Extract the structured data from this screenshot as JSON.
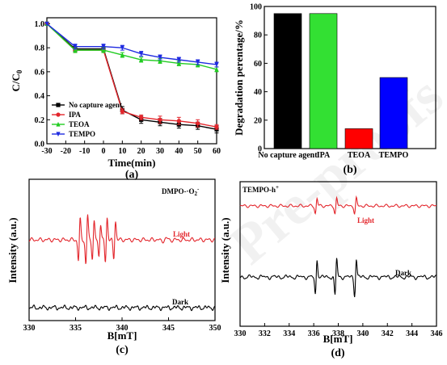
{
  "chart_data": [
    {
      "panel": "(a)",
      "type": "line",
      "xlabel": "Time(min)",
      "ylabel": "C/C",
      "ylabel_sub": "0",
      "xlim": [
        -30,
        60
      ],
      "ylim": [
        0.0,
        1.05
      ],
      "xticks": [
        "-30",
        "-20",
        "-10",
        "0",
        "10",
        "20",
        "30",
        "40",
        "50",
        "60"
      ],
      "yticks": [
        "0.0",
        "0.2",
        "0.4",
        "0.6",
        "0.8",
        "1.0"
      ],
      "legend": "bottom-left",
      "x": [
        -30,
        -15,
        0,
        10,
        20,
        30,
        40,
        50,
        60
      ],
      "series": [
        {
          "name": "No capture agent",
          "color": "#000000",
          "marker": "square",
          "values": [
            1.0,
            0.79,
            0.79,
            0.28,
            0.2,
            0.18,
            0.16,
            0.15,
            0.12
          ],
          "err": [
            0,
            0.02,
            0.02,
            0.03,
            0.03,
            0.03,
            0.03,
            0.03,
            0.03
          ]
        },
        {
          "name": "IPA",
          "color": "#e3262c",
          "marker": "circle",
          "values": [
            1.0,
            0.78,
            0.78,
            0.27,
            0.22,
            0.2,
            0.19,
            0.17,
            0.14
          ],
          "err": [
            0,
            0.02,
            0.02,
            0.02,
            0.02,
            0.03,
            0.03,
            0.03,
            0.02
          ]
        },
        {
          "name": "TEOA",
          "color": "#22cc22",
          "marker": "triangle-up",
          "values": [
            1.0,
            0.78,
            0.78,
            0.74,
            0.7,
            0.69,
            0.67,
            0.66,
            0.62
          ],
          "err": [
            0,
            0.02,
            0.02,
            0.02,
            0.02,
            0.02,
            0.02,
            0.02,
            0.02
          ]
        },
        {
          "name": "TEMPO",
          "color": "#1f2be0",
          "marker": "triangle-down",
          "values": [
            1.0,
            0.81,
            0.81,
            0.8,
            0.75,
            0.72,
            0.7,
            0.68,
            0.66
          ],
          "err": [
            0,
            0.02,
            0.02,
            0.02,
            0.02,
            0.02,
            0.02,
            0.02,
            0.02
          ]
        }
      ]
    },
    {
      "panel": "(b)",
      "type": "bar",
      "ylabel": "Degradation perentage/%",
      "ylim": [
        0,
        100
      ],
      "yticks": [
        "0",
        "20",
        "40",
        "60",
        "80",
        "100"
      ],
      "categories": [
        "No capture agent",
        "IPA",
        "TEOA",
        "TEMPO"
      ],
      "values": [
        95,
        95,
        14,
        50
      ],
      "colors": [
        "#000000",
        "#33e033",
        "#ff0000",
        "#0000ff"
      ]
    },
    {
      "panel": "(c)",
      "type": "line",
      "xlabel": "B[mT]",
      "ylabel": "Intensity (a.u.)",
      "xlim": [
        330,
        350
      ],
      "xticks": [
        "330",
        "335",
        "340",
        "345",
        "350"
      ],
      "label_prefix": "DMPO-·O",
      "label_sub": "2",
      "label_sup": "-",
      "series": [
        {
          "name": "Light",
          "color": "#e3262c"
        },
        {
          "name": "Dark",
          "color": "#000000"
        }
      ]
    },
    {
      "panel": "(d)",
      "type": "line",
      "xlabel": "B[mT]",
      "ylabel": "Intensity (a.u.)",
      "xlim": [
        330,
        346
      ],
      "xticks": [
        "330",
        "332",
        "334",
        "336",
        "338",
        "340",
        "342",
        "344",
        "346"
      ],
      "label_prefix": "TEMPO-h",
      "label_sup": "+",
      "series": [
        {
          "name": "Light",
          "color": "#e3262c"
        },
        {
          "name": "Dark",
          "color": "#000000"
        }
      ]
    }
  ]
}
